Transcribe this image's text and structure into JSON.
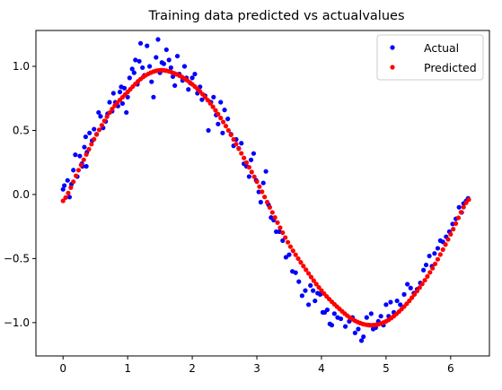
{
  "chart_data": {
    "type": "scatter",
    "title": "Training data predicted vs actualvalues",
    "xlabel": "",
    "ylabel": "",
    "xlim": [
      -0.42,
      6.6
    ],
    "ylim": [
      -1.26,
      1.28
    ],
    "xticks": [
      0,
      1,
      2,
      3,
      4,
      5,
      6
    ],
    "yticks": [
      -1.0,
      -0.5,
      0.0,
      0.5,
      1.0
    ],
    "xtick_labels": [
      "0",
      "1",
      "2",
      "3",
      "4",
      "5",
      "6"
    ],
    "ytick_labels": [
      "−1.0",
      "−0.5",
      "0.0",
      "0.5",
      "1.0"
    ],
    "grid": false,
    "legend_position": "top-right",
    "series": [
      {
        "name": "Actual",
        "color": "#0000ff",
        "marker": "dot",
        "points": [
          [
            0.0,
            0.04
          ],
          [
            0.02,
            0.07
          ],
          [
            0.07,
            0.11
          ],
          [
            0.1,
            -0.02
          ],
          [
            0.13,
            0.08
          ],
          [
            0.16,
            0.19
          ],
          [
            0.19,
            0.31
          ],
          [
            0.22,
            0.14
          ],
          [
            0.26,
            0.3
          ],
          [
            0.29,
            0.24
          ],
          [
            0.3,
            0.22
          ],
          [
            0.33,
            0.37
          ],
          [
            0.35,
            0.45
          ],
          [
            0.36,
            0.22
          ],
          [
            0.37,
            0.33
          ],
          [
            0.41,
            0.48
          ],
          [
            0.45,
            0.42
          ],
          [
            0.48,
            0.51
          ],
          [
            0.52,
            0.47
          ],
          [
            0.55,
            0.64
          ],
          [
            0.58,
            0.61
          ],
          [
            0.62,
            0.52
          ],
          [
            0.66,
            0.57
          ],
          [
            0.69,
            0.63
          ],
          [
            0.72,
            0.72
          ],
          [
            0.76,
            0.65
          ],
          [
            0.78,
            0.79
          ],
          [
            0.81,
            0.72
          ],
          [
            0.85,
            0.69
          ],
          [
            0.88,
            0.8
          ],
          [
            0.9,
            0.84
          ],
          [
            0.92,
            0.71
          ],
          [
            0.95,
            0.83
          ],
          [
            0.98,
            0.64
          ],
          [
            1.0,
            0.76
          ],
          [
            1.03,
            0.91
          ],
          [
            1.07,
            0.98
          ],
          [
            1.1,
            0.95
          ],
          [
            1.12,
            1.05
          ],
          [
            1.15,
            0.86
          ],
          [
            1.18,
            1.04
          ],
          [
            1.2,
            1.18
          ],
          [
            1.23,
            0.99
          ],
          [
            1.26,
            0.93
          ],
          [
            1.3,
            1.16
          ],
          [
            1.34,
            1.0
          ],
          [
            1.37,
            0.88
          ],
          [
            1.4,
            0.76
          ],
          [
            1.44,
            1.07
          ],
          [
            1.47,
            1.21
          ],
          [
            1.5,
            0.95
          ],
          [
            1.53,
            1.03
          ],
          [
            1.56,
            1.02
          ],
          [
            1.6,
            1.13
          ],
          [
            1.64,
            1.05
          ],
          [
            1.67,
            0.99
          ],
          [
            1.7,
            0.92
          ],
          [
            1.73,
            0.85
          ],
          [
            1.77,
            1.08
          ],
          [
            1.8,
            0.94
          ],
          [
            1.85,
            0.89
          ],
          [
            1.88,
            1.0
          ],
          [
            1.91,
            0.91
          ],
          [
            1.94,
            0.82
          ],
          [
            1.97,
            0.87
          ],
          [
            2.0,
            0.91
          ],
          [
            2.04,
            0.94
          ],
          [
            2.08,
            0.79
          ],
          [
            2.12,
            0.84
          ],
          [
            2.15,
            0.74
          ],
          [
            2.2,
            0.77
          ],
          [
            2.25,
            0.5
          ],
          [
            2.29,
            0.72
          ],
          [
            2.33,
            0.76
          ],
          [
            2.37,
            0.62
          ],
          [
            2.4,
            0.55
          ],
          [
            2.44,
            0.72
          ],
          [
            2.47,
            0.48
          ],
          [
            2.5,
            0.66
          ],
          [
            2.55,
            0.59
          ],
          [
            2.6,
            0.47
          ],
          [
            2.64,
            0.38
          ],
          [
            2.68,
            0.43
          ],
          [
            2.72,
            0.36
          ],
          [
            2.76,
            0.4
          ],
          [
            2.8,
            0.24
          ],
          [
            2.84,
            0.22
          ],
          [
            2.88,
            0.14
          ],
          [
            2.91,
            0.27
          ],
          [
            2.95,
            0.32
          ],
          [
            2.99,
            0.11
          ],
          [
            3.03,
            0.02
          ],
          [
            3.06,
            -0.06
          ],
          [
            3.1,
            0.09
          ],
          [
            3.14,
            0.18
          ],
          [
            3.18,
            -0.08
          ],
          [
            3.22,
            -0.18
          ],
          [
            3.26,
            -0.2
          ],
          [
            3.3,
            -0.29
          ],
          [
            3.35,
            -0.29
          ],
          [
            3.4,
            -0.36
          ],
          [
            3.45,
            -0.49
          ],
          [
            3.5,
            -0.47
          ],
          [
            3.55,
            -0.6
          ],
          [
            3.6,
            -0.61
          ],
          [
            3.65,
            -0.68
          ],
          [
            3.7,
            -0.79
          ],
          [
            3.75,
            -0.75
          ],
          [
            3.8,
            -0.86
          ],
          [
            3.83,
            -0.71
          ],
          [
            3.87,
            -0.75
          ],
          [
            3.9,
            -0.83
          ],
          [
            3.94,
            -0.77
          ],
          [
            3.98,
            -0.78
          ],
          [
            4.02,
            -0.92
          ],
          [
            4.05,
            -0.92
          ],
          [
            4.09,
            -0.9
          ],
          [
            4.13,
            -1.01
          ],
          [
            4.16,
            -1.02
          ],
          [
            4.2,
            -0.93
          ],
          [
            4.25,
            -0.96
          ],
          [
            4.3,
            -0.97
          ],
          [
            4.37,
            -1.03
          ],
          [
            4.43,
            -0.99
          ],
          [
            4.48,
            -0.96
          ],
          [
            4.52,
            -1.08
          ],
          [
            4.57,
            -1.05
          ],
          [
            4.62,
            -1.14
          ],
          [
            4.65,
            -1.11
          ],
          [
            4.7,
            -0.96
          ],
          [
            4.74,
            -1.02
          ],
          [
            4.77,
            -0.93
          ],
          [
            4.8,
            -1.05
          ],
          [
            4.84,
            -1.04
          ],
          [
            4.88,
            -0.99
          ],
          [
            4.92,
            -0.95
          ],
          [
            4.96,
            -1.02
          ],
          [
            5.0,
            -0.86
          ],
          [
            5.04,
            -0.95
          ],
          [
            5.07,
            -0.84
          ],
          [
            5.12,
            -0.92
          ],
          [
            5.17,
            -0.83
          ],
          [
            5.22,
            -0.86
          ],
          [
            5.28,
            -0.78
          ],
          [
            5.33,
            -0.7
          ],
          [
            5.38,
            -0.73
          ],
          [
            5.43,
            -0.77
          ],
          [
            5.48,
            -0.74
          ],
          [
            5.53,
            -0.69
          ],
          [
            5.58,
            -0.59
          ],
          [
            5.62,
            -0.55
          ],
          [
            5.67,
            -0.48
          ],
          [
            5.71,
            -0.56
          ],
          [
            5.75,
            -0.46
          ],
          [
            5.8,
            -0.42
          ],
          [
            5.84,
            -0.36
          ],
          [
            5.88,
            -0.37
          ],
          [
            5.93,
            -0.33
          ],
          [
            5.98,
            -0.29
          ],
          [
            6.03,
            -0.23
          ],
          [
            6.08,
            -0.19
          ],
          [
            6.13,
            -0.1
          ],
          [
            6.17,
            -0.14
          ],
          [
            6.2,
            -0.07
          ],
          [
            6.24,
            -0.05
          ],
          [
            6.27,
            -0.03
          ]
        ]
      },
      {
        "name": "Predicted",
        "color": "#ff0000",
        "marker": "dot",
        "curve": "smooth_sine_like",
        "x_start": 0.0,
        "x_end": 6.28,
        "x_step": 0.04,
        "curve_points": [
          [
            0.0,
            -0.05
          ],
          [
            0.25,
            0.2
          ],
          [
            0.5,
            0.45
          ],
          [
            0.75,
            0.66
          ],
          [
            1.0,
            0.8
          ],
          [
            1.25,
            0.92
          ],
          [
            1.5,
            0.97
          ],
          [
            1.75,
            0.94
          ],
          [
            2.0,
            0.86
          ],
          [
            2.25,
            0.73
          ],
          [
            2.5,
            0.55
          ],
          [
            2.75,
            0.33
          ],
          [
            3.0,
            0.1
          ],
          [
            3.25,
            -0.15
          ],
          [
            3.5,
            -0.39
          ],
          [
            3.75,
            -0.58
          ],
          [
            4.0,
            -0.75
          ],
          [
            4.25,
            -0.88
          ],
          [
            4.5,
            -0.98
          ],
          [
            4.75,
            -1.02
          ],
          [
            5.0,
            -0.99
          ],
          [
            5.25,
            -0.89
          ],
          [
            5.5,
            -0.74
          ],
          [
            5.75,
            -0.55
          ],
          [
            6.0,
            -0.31
          ],
          [
            6.28,
            -0.04
          ]
        ]
      }
    ]
  }
}
